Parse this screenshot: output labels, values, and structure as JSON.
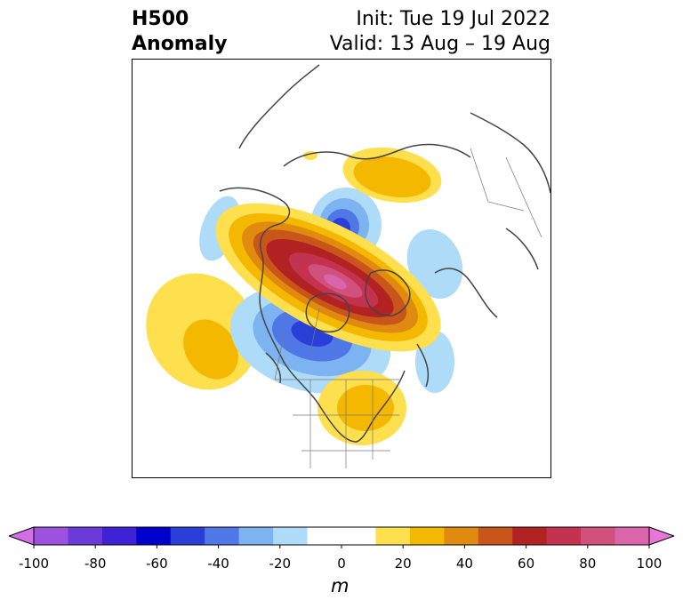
{
  "header": {
    "title_line1": "H500",
    "title_line2": "Anomaly",
    "init_label": "Init: Tue 19 Jul 2022",
    "valid_label": "Valid: 13 Aug – 19 Aug"
  },
  "map": {
    "projection": "polar stereographic, North America / Arctic",
    "variable": "500 hPa geopotential height anomaly",
    "features": [
      {
        "type": "positive",
        "peak_m": 90,
        "region": "Canadian Arctic Archipelago / Greenland ridge"
      },
      {
        "type": "positive",
        "peak_m": 30,
        "region": "Siberia"
      },
      {
        "type": "positive",
        "peak_m": 30,
        "region": "North Pacific"
      },
      {
        "type": "positive",
        "peak_m": 30,
        "region": "Eastern United States / Great Lakes"
      },
      {
        "type": "negative",
        "peak_m": -60,
        "region": "Hudson Bay / central Canada"
      },
      {
        "type": "negative",
        "peak_m": -60,
        "region": "Arctic Ocean near Pole"
      },
      {
        "type": "negative",
        "peak_m": -10,
        "region": "Gulf of Alaska"
      },
      {
        "type": "negative",
        "peak_m": -10,
        "region": "North Atlantic"
      },
      {
        "type": "negative",
        "peak_m": -10,
        "region": "Barents / Kara Sea"
      }
    ]
  },
  "colorbar": {
    "ticks": [
      "-100",
      "-80",
      "-60",
      "-40",
      "-20",
      "0",
      "20",
      "40",
      "60",
      "80",
      "100"
    ],
    "tick_values": [
      -100,
      -80,
      -60,
      -40,
      -20,
      0,
      20,
      40,
      60,
      80,
      100
    ],
    "colors": [
      "#d46ee6",
      "#9c52de",
      "#6b3bd9",
      "#3d22d6",
      "#0000cc",
      "#2a3fd8",
      "#4f78e6",
      "#7cb3f0",
      "#aedbf7",
      "#ffffff",
      "#ffffff",
      "#fee04f",
      "#f5b800",
      "#e08a10",
      "#c8561b",
      "#b22222",
      "#c3334f",
      "#d0517c",
      "#db65aa",
      "#e876d8"
    ],
    "extend": "both",
    "units": "m"
  }
}
